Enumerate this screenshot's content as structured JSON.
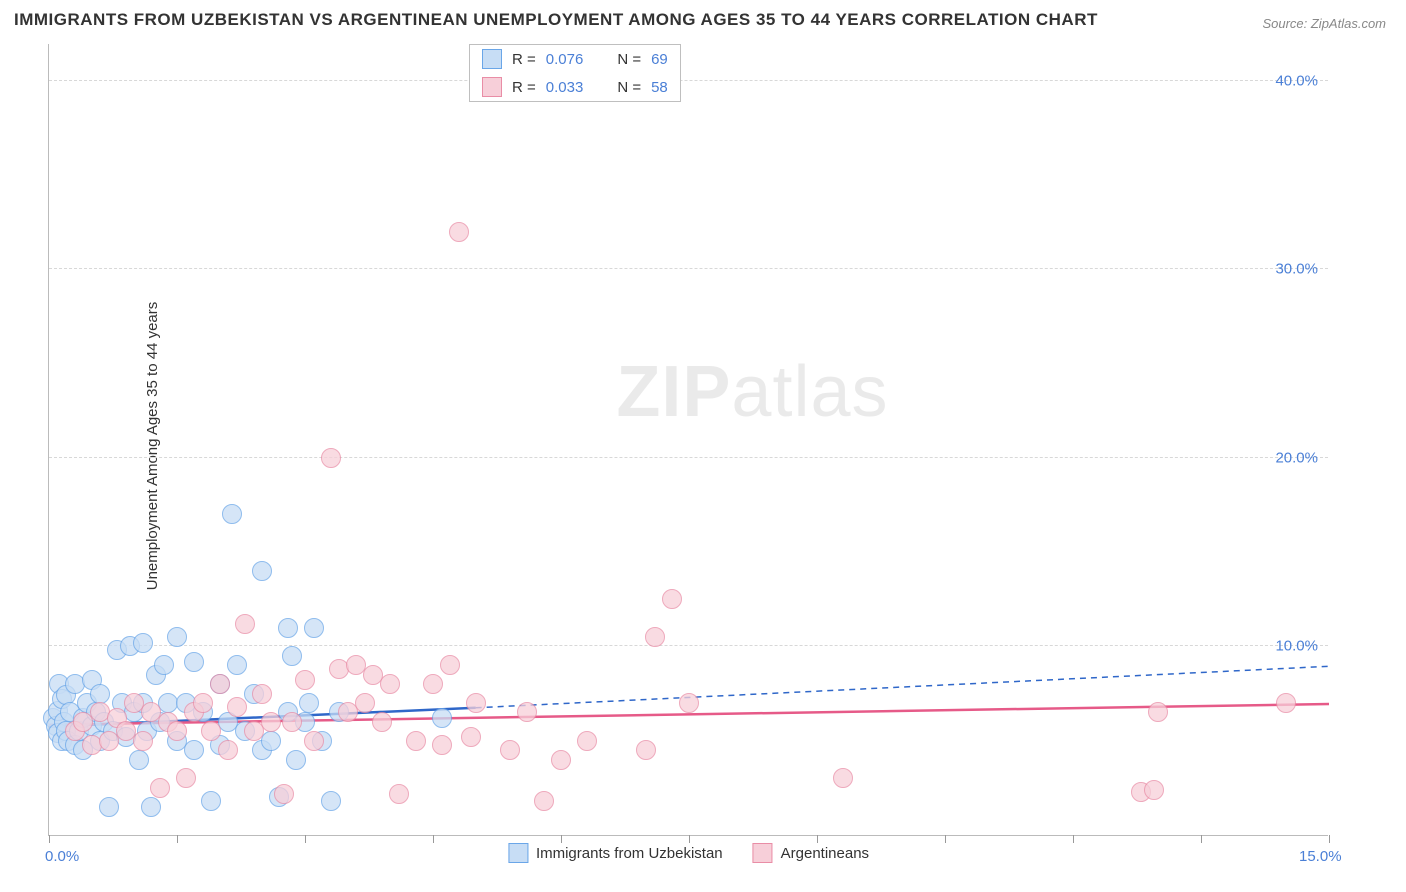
{
  "chart": {
    "type": "scatter",
    "title": "IMMIGRANTS FROM UZBEKISTAN VS ARGENTINEAN UNEMPLOYMENT AMONG AGES 35 TO 44 YEARS CORRELATION CHART",
    "source": "Source: ZipAtlas.com",
    "ylabel": "Unemployment Among Ages 35 to 44 years",
    "watermark_bold": "ZIP",
    "watermark_light": "atlas",
    "background_color": "#ffffff",
    "grid_color": "#d8d8d8",
    "axis_color": "#bbbbbb",
    "label_color": "#4a7fd6",
    "title_color": "#333333",
    "title_fontsize": 17,
    "label_fontsize": 15,
    "xlim": [
      0,
      15
    ],
    "ylim": [
      0,
      42
    ],
    "xticks": [
      0,
      1.5,
      3,
      4.5,
      6,
      7.5,
      9,
      10.5,
      12,
      13.5,
      15
    ],
    "xtick_labels": {
      "0": "0.0%",
      "15": "15.0%"
    },
    "yticks": [
      10,
      20,
      30,
      40
    ],
    "ytick_labels": {
      "10": "10.0%",
      "20": "20.0%",
      "30": "30.0%",
      "40": "40.0%"
    },
    "marker_radius": 10,
    "series": [
      {
        "name": "Immigrants from Uzbekistan",
        "fill": "#c7ddf5",
        "stroke": "#6aa6e8",
        "R": "0.076",
        "N": "69",
        "trend": {
          "x1": 0,
          "y1": 5.8,
          "x2": 5.0,
          "y2": 6.8,
          "dash_x2": 15,
          "dash_y2": 9.0,
          "color": "#2f67c9",
          "width": 2.5
        },
        "points": [
          [
            0.05,
            6.2
          ],
          [
            0.08,
            5.8
          ],
          [
            0.1,
            5.4
          ],
          [
            0.1,
            6.6
          ],
          [
            0.12,
            8.0
          ],
          [
            0.15,
            5.0
          ],
          [
            0.15,
            7.2
          ],
          [
            0.18,
            6.0
          ],
          [
            0.2,
            5.5
          ],
          [
            0.2,
            7.4
          ],
          [
            0.22,
            5.0
          ],
          [
            0.25,
            6.5
          ],
          [
            0.3,
            4.8
          ],
          [
            0.3,
            8.0
          ],
          [
            0.35,
            5.5
          ],
          [
            0.4,
            6.2
          ],
          [
            0.4,
            4.5
          ],
          [
            0.45,
            7.0
          ],
          [
            0.5,
            5.8
          ],
          [
            0.5,
            8.2
          ],
          [
            0.55,
            6.5
          ],
          [
            0.6,
            5.0
          ],
          [
            0.6,
            7.5
          ],
          [
            0.65,
            6.0
          ],
          [
            0.7,
            1.5
          ],
          [
            0.75,
            5.5
          ],
          [
            0.8,
            9.8
          ],
          [
            0.85,
            7.0
          ],
          [
            0.9,
            5.2
          ],
          [
            0.95,
            10.0
          ],
          [
            1.0,
            6.5
          ],
          [
            1.05,
            4.0
          ],
          [
            1.1,
            10.2
          ],
          [
            1.1,
            7.0
          ],
          [
            1.15,
            5.5
          ],
          [
            1.2,
            1.5
          ],
          [
            1.25,
            8.5
          ],
          [
            1.3,
            6.0
          ],
          [
            1.35,
            9.0
          ],
          [
            1.4,
            7.0
          ],
          [
            1.5,
            10.5
          ],
          [
            1.5,
            5.0
          ],
          [
            1.6,
            7.0
          ],
          [
            1.7,
            9.2
          ],
          [
            1.7,
            4.5
          ],
          [
            1.8,
            6.5
          ],
          [
            1.9,
            1.8
          ],
          [
            2.0,
            4.8
          ],
          [
            2.0,
            8.0
          ],
          [
            2.1,
            6.0
          ],
          [
            2.15,
            17.0
          ],
          [
            2.2,
            9.0
          ],
          [
            2.3,
            5.5
          ],
          [
            2.4,
            7.5
          ],
          [
            2.5,
            4.5
          ],
          [
            2.5,
            14.0
          ],
          [
            2.6,
            5.0
          ],
          [
            2.7,
            2.0
          ],
          [
            2.8,
            11.0
          ],
          [
            2.8,
            6.5
          ],
          [
            2.85,
            9.5
          ],
          [
            2.9,
            4.0
          ],
          [
            3.0,
            6.0
          ],
          [
            3.05,
            7.0
          ],
          [
            3.1,
            11.0
          ],
          [
            3.2,
            5.0
          ],
          [
            3.3,
            1.8
          ],
          [
            3.4,
            6.5
          ],
          [
            4.6,
            6.2
          ]
        ]
      },
      {
        "name": "Argentineans",
        "fill": "#f7cfd9",
        "stroke": "#e98da6",
        "R": "0.033",
        "N": "58",
        "trend": {
          "x1": 0,
          "y1": 5.9,
          "x2": 15,
          "y2": 7.0,
          "color": "#e65a88",
          "width": 2.5
        },
        "points": [
          [
            0.3,
            5.5
          ],
          [
            0.4,
            6.0
          ],
          [
            0.5,
            4.8
          ],
          [
            0.6,
            6.5
          ],
          [
            0.7,
            5.0
          ],
          [
            0.8,
            6.2
          ],
          [
            0.9,
            5.5
          ],
          [
            1.0,
            7.0
          ],
          [
            1.1,
            5.0
          ],
          [
            1.2,
            6.5
          ],
          [
            1.3,
            2.5
          ],
          [
            1.4,
            6.0
          ],
          [
            1.5,
            5.5
          ],
          [
            1.6,
            3.0
          ],
          [
            1.7,
            6.5
          ],
          [
            1.8,
            7.0
          ],
          [
            1.9,
            5.5
          ],
          [
            2.0,
            8.0
          ],
          [
            2.1,
            4.5
          ],
          [
            2.2,
            6.8
          ],
          [
            2.3,
            11.2
          ],
          [
            2.4,
            5.5
          ],
          [
            2.5,
            7.5
          ],
          [
            2.6,
            6.0
          ],
          [
            2.75,
            2.2
          ],
          [
            2.85,
            6.0
          ],
          [
            3.0,
            8.2
          ],
          [
            3.1,
            5.0
          ],
          [
            3.3,
            20.0
          ],
          [
            3.4,
            8.8
          ],
          [
            3.5,
            6.5
          ],
          [
            3.6,
            9.0
          ],
          [
            3.7,
            7.0
          ],
          [
            3.8,
            8.5
          ],
          [
            3.9,
            6.0
          ],
          [
            4.0,
            8.0
          ],
          [
            4.1,
            2.2
          ],
          [
            4.3,
            5.0
          ],
          [
            4.5,
            8.0
          ],
          [
            4.6,
            4.8
          ],
          [
            4.7,
            9.0
          ],
          [
            4.8,
            32.0
          ],
          [
            4.95,
            5.2
          ],
          [
            5.0,
            7.0
          ],
          [
            5.4,
            4.5
          ],
          [
            5.6,
            6.5
          ],
          [
            5.8,
            1.8
          ],
          [
            6.0,
            4.0
          ],
          [
            6.3,
            5.0
          ],
          [
            7.0,
            4.5
          ],
          [
            7.1,
            10.5
          ],
          [
            7.3,
            12.5
          ],
          [
            7.5,
            7.0
          ],
          [
            9.3,
            3.0
          ],
          [
            12.8,
            2.3
          ],
          [
            12.95,
            2.4
          ],
          [
            13.0,
            6.5
          ],
          [
            14.5,
            7.0
          ]
        ]
      }
    ],
    "legend_top": {
      "R_label": "R =",
      "N_label": "N ="
    },
    "legend_bottom_items": [
      "Immigrants from Uzbekistan",
      "Argentineans"
    ]
  }
}
